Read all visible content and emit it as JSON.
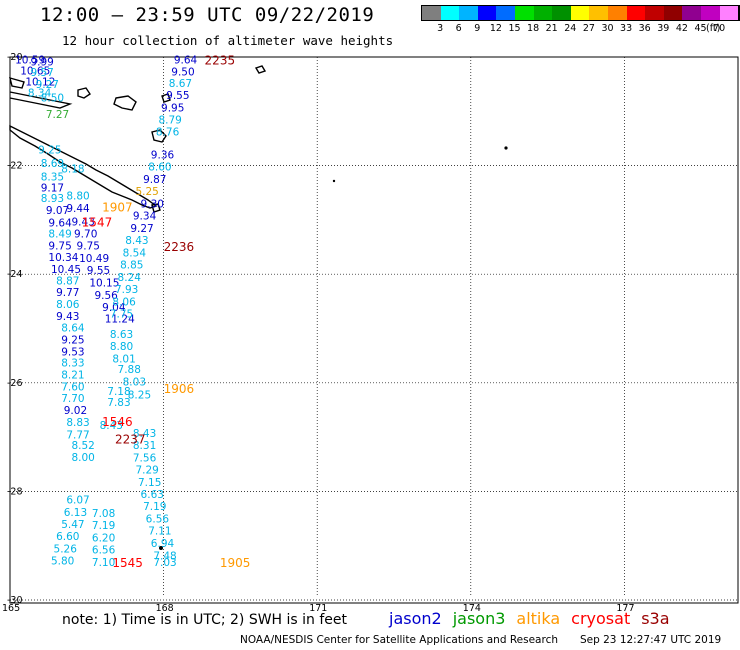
{
  "header": {
    "title": "12:00 – 23:59 UTC 09/22/2019",
    "subtitle": "12 hour collection of altimeter wave heights"
  },
  "legend": {
    "colors": [
      "#7f7f7f",
      "#00ffff",
      "#00b4ff",
      "#0000ff",
      "#006cff",
      "#00e000",
      "#00b000",
      "#009000",
      "#ffff00",
      "#ffc000",
      "#ff8000",
      "#ff0000",
      "#c00000",
      "#900000",
      "#900090",
      "#c000c0",
      "#ff80ff",
      "#000000"
    ],
    "labels": [
      "3",
      "6",
      "9",
      "12",
      "15",
      "18",
      "21",
      "24",
      "27",
      "30",
      "33",
      "36",
      "39",
      "42",
      "45",
      "70"
    ],
    "unit": "(ft)"
  },
  "axes": {
    "lat_labels": [
      "-20",
      "-22",
      "-24",
      "-26",
      "-28",
      "-30"
    ],
    "lon_labels": [
      "165",
      "168",
      "171",
      "174",
      "177"
    ]
  },
  "series_colors": {
    "jason2": "#0000cc",
    "jason3": "#009900",
    "altika": "#ff9900",
    "cryosat": "#ff0000",
    "s3a": "#990000",
    "cyan": "#00b4e6",
    "blue": "#0000cc",
    "green": "#33aa33",
    "yellow": "#e0a000"
  },
  "wave_heights": [
    {
      "v": "10.59",
      "lon": 165.1,
      "lat": -20.05,
      "c": "blue"
    },
    {
      "v": "9.99",
      "lon": 165.4,
      "lat": -20.08,
      "c": "blue"
    },
    {
      "v": "10.65",
      "lon": 165.2,
      "lat": -20.25,
      "c": "blue"
    },
    {
      "v": "9.57",
      "lon": 165.4,
      "lat": -20.28,
      "c": "cyan"
    },
    {
      "v": "10.12",
      "lon": 165.3,
      "lat": -20.45,
      "c": "blue"
    },
    {
      "v": "9.27",
      "lon": 165.5,
      "lat": -20.5,
      "c": "cyan"
    },
    {
      "v": "8.34",
      "lon": 165.35,
      "lat": -20.65,
      "c": "cyan"
    },
    {
      "v": "8.50",
      "lon": 165.6,
      "lat": -20.75,
      "c": "cyan"
    },
    {
      "v": "7.27",
      "lon": 165.7,
      "lat": -21.05,
      "c": "green"
    },
    {
      "v": "9.25",
      "lon": 165.55,
      "lat": -21.7,
      "c": "cyan"
    },
    {
      "v": "8.69",
      "lon": 165.6,
      "lat": -21.95,
      "c": "cyan"
    },
    {
      "v": "8.18",
      "lon": 166.0,
      "lat": -22.05,
      "c": "cyan"
    },
    {
      "v": "8.35",
      "lon": 165.6,
      "lat": -22.2,
      "c": "cyan"
    },
    {
      "v": "9.17",
      "lon": 165.6,
      "lat": -22.4,
      "c": "blue"
    },
    {
      "v": "8.93",
      "lon": 165.6,
      "lat": -22.6,
      "c": "cyan"
    },
    {
      "v": "8.80",
      "lon": 166.1,
      "lat": -22.55,
      "c": "cyan"
    },
    {
      "v": "9.07",
      "lon": 165.7,
      "lat": -22.82,
      "c": "blue"
    },
    {
      "v": "9.44",
      "lon": 166.1,
      "lat": -22.78,
      "c": "blue"
    },
    {
      "v": "9.64",
      "lon": 165.75,
      "lat": -23.05,
      "c": "blue"
    },
    {
      "v": "9.43",
      "lon": 166.2,
      "lat": -23.03,
      "c": "blue"
    },
    {
      "v": "8.49",
      "lon": 165.75,
      "lat": -23.25,
      "c": "cyan"
    },
    {
      "v": "9.70",
      "lon": 166.25,
      "lat": -23.25,
      "c": "blue"
    },
    {
      "v": "9.75",
      "lon": 165.75,
      "lat": -23.47,
      "c": "blue"
    },
    {
      "v": "9.75",
      "lon": 166.3,
      "lat": -23.47,
      "c": "blue"
    },
    {
      "v": "10.34",
      "lon": 165.75,
      "lat": -23.68,
      "c": "blue"
    },
    {
      "v": "10.49",
      "lon": 166.35,
      "lat": -23.7,
      "c": "blue"
    },
    {
      "v": "10.45",
      "lon": 165.8,
      "lat": -23.9,
      "c": "blue"
    },
    {
      "v": "9.55",
      "lon": 166.5,
      "lat": -23.92,
      "c": "blue"
    },
    {
      "v": "8.87",
      "lon": 165.9,
      "lat": -24.12,
      "c": "cyan"
    },
    {
      "v": "10.15",
      "lon": 166.55,
      "lat": -24.15,
      "c": "blue"
    },
    {
      "v": "9.77",
      "lon": 165.9,
      "lat": -24.33,
      "c": "blue"
    },
    {
      "v": "9.56",
      "lon": 166.65,
      "lat": -24.38,
      "c": "blue"
    },
    {
      "v": "8.06",
      "lon": 165.9,
      "lat": -24.55,
      "c": "cyan"
    },
    {
      "v": "9.04",
      "lon": 166.8,
      "lat": -24.6,
      "c": "blue"
    },
    {
      "v": "9.43",
      "lon": 165.9,
      "lat": -24.77,
      "c": "blue"
    },
    {
      "v": "11.24",
      "lon": 166.85,
      "lat": -24.82,
      "c": "blue"
    },
    {
      "v": "8.64",
      "lon": 166.0,
      "lat": -24.98,
      "c": "cyan"
    },
    {
      "v": "8.63",
      "lon": 166.95,
      "lat": -25.1,
      "c": "cyan"
    },
    {
      "v": "9.25",
      "lon": 166.0,
      "lat": -25.2,
      "c": "blue"
    },
    {
      "v": "8.80",
      "lon": 166.95,
      "lat": -25.32,
      "c": "cyan"
    },
    {
      "v": "9.53",
      "lon": 166.0,
      "lat": -25.42,
      "c": "blue"
    },
    {
      "v": "8.01",
      "lon": 167.0,
      "lat": -25.55,
      "c": "cyan"
    },
    {
      "v": "8.33",
      "lon": 166.0,
      "lat": -25.63,
      "c": "cyan"
    },
    {
      "v": "7.88",
      "lon": 167.1,
      "lat": -25.75,
      "c": "cyan"
    },
    {
      "v": "8.21",
      "lon": 166.0,
      "lat": -25.85,
      "c": "cyan"
    },
    {
      "v": "8.03",
      "lon": 167.2,
      "lat": -25.98,
      "c": "cyan"
    },
    {
      "v": "7.60",
      "lon": 166.0,
      "lat": -26.07,
      "c": "cyan"
    },
    {
      "v": "7.18",
      "lon": 166.9,
      "lat": -26.15,
      "c": "cyan"
    },
    {
      "v": "8.25",
      "lon": 167.3,
      "lat": -26.22,
      "c": "cyan"
    },
    {
      "v": "7.70",
      "lon": 166.0,
      "lat": -26.28,
      "c": "cyan"
    },
    {
      "v": "7.83",
      "lon": 166.9,
      "lat": -26.35,
      "c": "cyan"
    },
    {
      "v": "9.02",
      "lon": 166.05,
      "lat": -26.5,
      "c": "blue"
    },
    {
      "v": "8.83",
      "lon": 166.1,
      "lat": -26.72,
      "c": "cyan"
    },
    {
      "v": "8.43",
      "lon": 166.75,
      "lat": -26.78,
      "c": "cyan"
    },
    {
      "v": "7.77",
      "lon": 166.1,
      "lat": -26.95,
      "c": "cyan"
    },
    {
      "v": "8.43",
      "lon": 167.4,
      "lat": -26.92,
      "c": "cyan"
    },
    {
      "v": "8.52",
      "lon": 166.2,
      "lat": -27.15,
      "c": "cyan"
    },
    {
      "v": "8.31",
      "lon": 167.4,
      "lat": -27.15,
      "c": "cyan"
    },
    {
      "v": "8.00",
      "lon": 166.2,
      "lat": -27.37,
      "c": "cyan"
    },
    {
      "v": "7.56",
      "lon": 167.4,
      "lat": -27.38,
      "c": "cyan"
    },
    {
      "v": "7.29",
      "lon": 167.45,
      "lat": -27.6,
      "c": "cyan"
    },
    {
      "v": "7.15",
      "lon": 167.5,
      "lat": -27.83,
      "c": "cyan"
    },
    {
      "v": "6.63",
      "lon": 167.55,
      "lat": -28.05,
      "c": "cyan"
    },
    {
      "v": "6.07",
      "lon": 166.1,
      "lat": -28.15,
      "c": "cyan"
    },
    {
      "v": "7.19",
      "lon": 167.6,
      "lat": -28.27,
      "c": "cyan"
    },
    {
      "v": "6.13",
      "lon": 166.05,
      "lat": -28.38,
      "c": "cyan"
    },
    {
      "v": "7.08",
      "lon": 166.6,
      "lat": -28.4,
      "c": "cyan"
    },
    {
      "v": "6.56",
      "lon": 167.65,
      "lat": -28.5,
      "c": "cyan"
    },
    {
      "v": "5.47",
      "lon": 166.0,
      "lat": -28.6,
      "c": "cyan"
    },
    {
      "v": "7.19",
      "lon": 166.6,
      "lat": -28.62,
      "c": "cyan"
    },
    {
      "v": "7.11",
      "lon": 167.7,
      "lat": -28.72,
      "c": "cyan"
    },
    {
      "v": "6.60",
      "lon": 165.9,
      "lat": -28.82,
      "c": "cyan"
    },
    {
      "v": "6.20",
      "lon": 166.6,
      "lat": -28.85,
      "c": "cyan"
    },
    {
      "v": "6.94",
      "lon": 167.75,
      "lat": -28.95,
      "c": "cyan"
    },
    {
      "v": "5.26",
      "lon": 165.85,
      "lat": -29.05,
      "c": "cyan"
    },
    {
      "v": "6.56",
      "lon": 166.6,
      "lat": -29.07,
      "c": "cyan"
    },
    {
      "v": "7.48",
      "lon": 167.8,
      "lat": -29.18,
      "c": "cyan"
    },
    {
      "v": "5.80",
      "lon": 165.8,
      "lat": -29.27,
      "c": "cyan"
    },
    {
      "v": "7.10",
      "lon": 166.6,
      "lat": -29.3,
      "c": "cyan"
    },
    {
      "v": "7.03",
      "lon": 167.8,
      "lat": -29.3,
      "c": "cyan"
    },
    {
      "v": "9.64",
      "lon": 168.2,
      "lat": -20.05,
      "c": "blue"
    },
    {
      "v": "9.50",
      "lon": 168.15,
      "lat": -20.27,
      "c": "blue"
    },
    {
      "v": "8.67",
      "lon": 168.1,
      "lat": -20.48,
      "c": "cyan"
    },
    {
      "v": "9.55",
      "lon": 168.05,
      "lat": -20.7,
      "c": "blue"
    },
    {
      "v": "9.95",
      "lon": 167.95,
      "lat": -20.93,
      "c": "blue"
    },
    {
      "v": "8.79",
      "lon": 167.9,
      "lat": -21.15,
      "c": "cyan"
    },
    {
      "v": "8.76",
      "lon": 167.85,
      "lat": -21.37,
      "c": "cyan"
    },
    {
      "v": "9.36",
      "lon": 167.75,
      "lat": -21.8,
      "c": "blue"
    },
    {
      "v": "8.60",
      "lon": 167.7,
      "lat": -22.02,
      "c": "cyan"
    },
    {
      "v": "9.87",
      "lon": 167.6,
      "lat": -22.25,
      "c": "blue"
    },
    {
      "v": "5.25",
      "lon": 167.45,
      "lat": -22.47,
      "c": "yellow"
    },
    {
      "v": "9.30",
      "lon": 167.55,
      "lat": -22.7,
      "c": "blue"
    },
    {
      "v": "9.34",
      "lon": 167.4,
      "lat": -22.92,
      "c": "blue"
    },
    {
      "v": "9.27",
      "lon": 167.35,
      "lat": -23.15,
      "c": "blue"
    },
    {
      "v": "8.43",
      "lon": 167.25,
      "lat": -23.37,
      "c": "cyan"
    },
    {
      "v": "8.54",
      "lon": 167.2,
      "lat": -23.6,
      "c": "cyan"
    },
    {
      "v": "8.85",
      "lon": 167.15,
      "lat": -23.82,
      "c": "cyan"
    },
    {
      "v": "8.24",
      "lon": 167.1,
      "lat": -24.05,
      "c": "cyan"
    },
    {
      "v": "7.93",
      "lon": 167.05,
      "lat": -24.27,
      "c": "cyan"
    },
    {
      "v": "8.06",
      "lon": 167.0,
      "lat": -24.5,
      "c": "cyan"
    },
    {
      "v": "7.75",
      "lon": 166.95,
      "lat": -24.72,
      "c": "cyan"
    }
  ],
  "pass_times": [
    {
      "t": "2235",
      "lon": 168.8,
      "lat": -20.05,
      "sat": "s3a"
    },
    {
      "t": "1907",
      "lon": 166.8,
      "lat": -22.75,
      "sat": "altika"
    },
    {
      "t": "1547",
      "lon": 166.4,
      "lat": -23.03,
      "sat": "cryosat"
    },
    {
      "t": "2236",
      "lon": 168.0,
      "lat": -23.48,
      "sat": "s3a"
    },
    {
      "t": "1906",
      "lon": 168.0,
      "lat": -26.1,
      "sat": "altika"
    },
    {
      "t": "1546",
      "lon": 166.8,
      "lat": -26.7,
      "sat": "cryosat"
    },
    {
      "t": "2237",
      "lon": 167.05,
      "lat": -27.03,
      "sat": "s3a"
    },
    {
      "t": "1545",
      "lon": 167.0,
      "lat": -29.3,
      "sat": "cryosat"
    },
    {
      "t": "1905",
      "lon": 169.1,
      "lat": -29.3,
      "sat": "altika"
    }
  ],
  "footer": {
    "note": "note:  1) Time is in UTC;  2) SWH is in feet",
    "satellites": [
      {
        "name": "jason2",
        "color": "#0000cc"
      },
      {
        "name": "jason3",
        "color": "#009900"
      },
      {
        "name": "altika",
        "color": "#ff9900"
      },
      {
        "name": "cryosat",
        "color": "#ff0000"
      },
      {
        "name": "s3a",
        "color": "#990000"
      }
    ],
    "credit": "NOAA/NESDIS Center for Satellite Applications and Research",
    "timestamp": "Sep 23 12:27:47 UTC 2019"
  }
}
